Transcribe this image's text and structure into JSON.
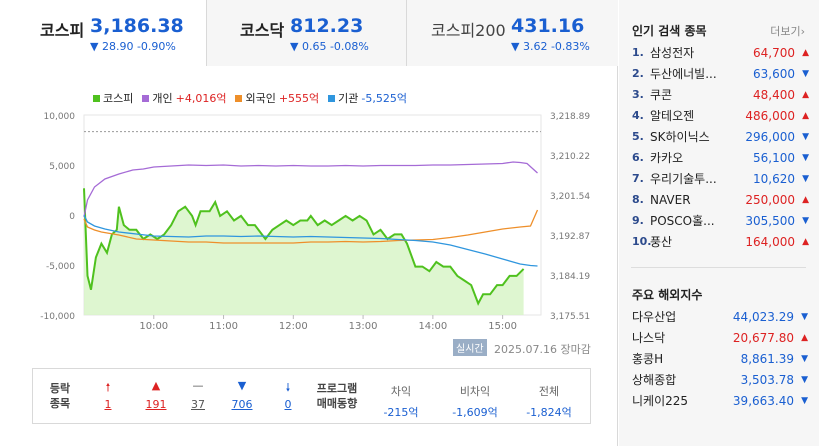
{
  "tabs": [
    {
      "name": "코스피",
      "value": "3,186.38",
      "change": "▼ 28.90 -0.90%"
    },
    {
      "name": "코스닥",
      "value": "812.23",
      "change": "▼ 0.65 -0.08%"
    },
    {
      "name": "코스피200",
      "value": "431.16",
      "change": "▼ 3.62 -0.83%"
    }
  ],
  "legend": [
    {
      "label": "코스피",
      "value": "",
      "color": "#4fc11e"
    },
    {
      "label": "개인",
      "value": "+4,016억",
      "color": "#a56bd6"
    },
    {
      "label": "외국인",
      "value": "+555억",
      "color": "#ee8f2a"
    },
    {
      "label": "기관",
      "value": "-5,525억",
      "color": "#2f96de"
    }
  ],
  "chart_data": {
    "type": "line",
    "left_axis": {
      "ticks": [
        "10,000",
        "5,000",
        "0",
        "-5,000",
        "-10,000"
      ],
      "range": [
        -10000,
        10000
      ]
    },
    "right_axis": {
      "ticks": [
        "3,218.89",
        "3,210.22",
        "3,201.54",
        "3,192.87",
        "3,184.19",
        "3,175.51"
      ],
      "range": [
        3175.51,
        3218.89
      ]
    },
    "x_ticks": [
      "10:00",
      "11:00",
      "12:00",
      "13:00",
      "14:00",
      "15:00"
    ],
    "x_range_hours": [
      9.0,
      15.55
    ],
    "reference_line": 3215.28,
    "series": [
      {
        "name": "코스피",
        "axis": "right",
        "points": [
          [
            9.0,
            3203
          ],
          [
            9.05,
            3184
          ],
          [
            9.1,
            3181
          ],
          [
            9.17,
            3188
          ],
          [
            9.25,
            3191
          ],
          [
            9.33,
            3189
          ],
          [
            9.4,
            3193
          ],
          [
            9.47,
            3194
          ],
          [
            9.5,
            3199
          ],
          [
            9.57,
            3195
          ],
          [
            9.65,
            3194
          ],
          [
            9.75,
            3194
          ],
          [
            9.85,
            3192
          ],
          [
            9.95,
            3193
          ],
          [
            10.05,
            3192
          ],
          [
            10.15,
            3193
          ],
          [
            10.25,
            3195
          ],
          [
            10.35,
            3198
          ],
          [
            10.45,
            3199
          ],
          [
            10.55,
            3197
          ],
          [
            10.6,
            3195
          ],
          [
            10.67,
            3198
          ],
          [
            10.8,
            3198
          ],
          [
            10.88,
            3200
          ],
          [
            10.95,
            3197
          ],
          [
            11.05,
            3198
          ],
          [
            11.15,
            3196
          ],
          [
            11.25,
            3197
          ],
          [
            11.35,
            3195
          ],
          [
            11.45,
            3195
          ],
          [
            11.55,
            3193
          ],
          [
            11.6,
            3192
          ],
          [
            11.7,
            3194
          ],
          [
            11.8,
            3195
          ],
          [
            11.9,
            3196
          ],
          [
            12.0,
            3195
          ],
          [
            12.1,
            3196
          ],
          [
            12.2,
            3196
          ],
          [
            12.25,
            3197
          ],
          [
            12.35,
            3195
          ],
          [
            12.45,
            3196
          ],
          [
            12.55,
            3195
          ],
          [
            12.65,
            3196
          ],
          [
            12.75,
            3197
          ],
          [
            12.85,
            3196
          ],
          [
            12.95,
            3197
          ],
          [
            13.05,
            3196
          ],
          [
            13.15,
            3193
          ],
          [
            13.25,
            3194
          ],
          [
            13.35,
            3192
          ],
          [
            13.45,
            3193
          ],
          [
            13.55,
            3193
          ],
          [
            13.63,
            3191
          ],
          [
            13.75,
            3186
          ],
          [
            13.85,
            3186
          ],
          [
            13.95,
            3185
          ],
          [
            14.05,
            3187
          ],
          [
            14.15,
            3186
          ],
          [
            14.25,
            3186
          ],
          [
            14.35,
            3184
          ],
          [
            14.45,
            3183
          ],
          [
            14.55,
            3182
          ],
          [
            14.65,
            3178
          ],
          [
            14.72,
            3180
          ],
          [
            14.82,
            3180
          ],
          [
            14.92,
            3182
          ],
          [
            15.0,
            3182
          ],
          [
            15.1,
            3184
          ],
          [
            15.2,
            3184
          ],
          [
            15.3,
            3185.5
          ]
        ]
      },
      {
        "name": "개인",
        "axis": "left",
        "points": [
          [
            9.0,
            -200
          ],
          [
            9.05,
            1500
          ],
          [
            9.15,
            2800
          ],
          [
            9.3,
            3600
          ],
          [
            9.5,
            4100
          ],
          [
            9.7,
            4500
          ],
          [
            9.85,
            4600
          ],
          [
            10.0,
            4800
          ],
          [
            10.25,
            4900
          ],
          [
            10.5,
            5000
          ],
          [
            10.75,
            4950
          ],
          [
            11.0,
            5000
          ],
          [
            11.25,
            4900
          ],
          [
            11.5,
            4950
          ],
          [
            11.75,
            4900
          ],
          [
            12.0,
            4950
          ],
          [
            12.25,
            4900
          ],
          [
            12.5,
            4900
          ],
          [
            12.75,
            4950
          ],
          [
            13.0,
            4900
          ],
          [
            13.25,
            4950
          ],
          [
            13.5,
            4950
          ],
          [
            13.75,
            4950
          ],
          [
            14.0,
            5000
          ],
          [
            14.25,
            5000
          ],
          [
            14.5,
            5050
          ],
          [
            14.75,
            5100
          ],
          [
            15.0,
            5150
          ],
          [
            15.15,
            5300
          ],
          [
            15.25,
            5250
          ],
          [
            15.35,
            5150
          ],
          [
            15.5,
            4200
          ]
        ]
      },
      {
        "name": "외국인",
        "axis": "left",
        "points": [
          [
            9.0,
            -400
          ],
          [
            9.05,
            -1200
          ],
          [
            9.15,
            -1500
          ],
          [
            9.25,
            -1700
          ],
          [
            9.5,
            -2000
          ],
          [
            9.75,
            -2400
          ],
          [
            10.0,
            -2500
          ],
          [
            10.25,
            -2600
          ],
          [
            10.5,
            -2700
          ],
          [
            10.75,
            -2700
          ],
          [
            11.0,
            -2800
          ],
          [
            11.25,
            -2800
          ],
          [
            11.5,
            -2800
          ],
          [
            11.75,
            -2800
          ],
          [
            12.0,
            -2800
          ],
          [
            12.25,
            -2700
          ],
          [
            12.5,
            -2700
          ],
          [
            12.75,
            -2650
          ],
          [
            13.0,
            -2700
          ],
          [
            13.25,
            -2650
          ],
          [
            13.5,
            -2550
          ],
          [
            13.75,
            -2500
          ],
          [
            14.0,
            -2450
          ],
          [
            14.25,
            -2250
          ],
          [
            14.5,
            -2000
          ],
          [
            14.75,
            -1700
          ],
          [
            15.0,
            -1400
          ],
          [
            15.25,
            -1200
          ],
          [
            15.4,
            -1100
          ],
          [
            15.5,
            500
          ]
        ]
      },
      {
        "name": "기관",
        "axis": "left",
        "points": [
          [
            9.0,
            0
          ],
          [
            9.05,
            -700
          ],
          [
            9.15,
            -1100
          ],
          [
            9.3,
            -1400
          ],
          [
            9.5,
            -1700
          ],
          [
            9.75,
            -1900
          ],
          [
            10.0,
            -2100
          ],
          [
            10.25,
            -2150
          ],
          [
            10.5,
            -2200
          ],
          [
            10.75,
            -2100
          ],
          [
            11.0,
            -2100
          ],
          [
            11.25,
            -2150
          ],
          [
            11.5,
            -2100
          ],
          [
            11.75,
            -2150
          ],
          [
            12.0,
            -2200
          ],
          [
            12.25,
            -2150
          ],
          [
            12.5,
            -2200
          ],
          [
            12.75,
            -2250
          ],
          [
            13.0,
            -2300
          ],
          [
            13.25,
            -2350
          ],
          [
            13.5,
            -2450
          ],
          [
            13.75,
            -2550
          ],
          [
            14.0,
            -2700
          ],
          [
            14.25,
            -3000
          ],
          [
            14.5,
            -3450
          ],
          [
            14.75,
            -3900
          ],
          [
            15.0,
            -4400
          ],
          [
            15.25,
            -4900
          ],
          [
            15.4,
            -5050
          ],
          [
            15.5,
            -5100
          ]
        ]
      }
    ]
  },
  "status": {
    "live": "실시간",
    "date": "2025.07.16 장마감"
  },
  "stats": {
    "label": "등락\n종목",
    "items": [
      {
        "icon": "🠕",
        "value": "1",
        "color": "#d22"
      },
      {
        "icon": "▲",
        "value": "191",
        "color": "#d22"
      },
      {
        "icon": "—",
        "value": "37",
        "color": "#555"
      },
      {
        "icon": "▼",
        "value": "706",
        "color": "#1a5fd1"
      },
      {
        "icon": "🠗",
        "value": "0",
        "color": "#1a5fd1"
      }
    ],
    "program_label": "프로그램\n매매동향",
    "program": [
      {
        "label": "차익",
        "value": "-215억"
      },
      {
        "label": "비차익",
        "value": "-1,609억"
      },
      {
        "label": "전체",
        "value": "-1,824억"
      }
    ]
  },
  "popular": {
    "title": "인기 검색 종목",
    "more": "더보기",
    "items": [
      {
        "no": "1.",
        "name": "삼성전자",
        "price": "64,700",
        "dir": "up"
      },
      {
        "no": "2.",
        "name": "두산에너빌...",
        "price": "63,600",
        "dir": "down"
      },
      {
        "no": "3.",
        "name": "쿠콘",
        "price": "48,400",
        "dir": "up"
      },
      {
        "no": "4.",
        "name": "알테오젠",
        "price": "486,000",
        "dir": "up"
      },
      {
        "no": "5.",
        "name": "SK하이닉스",
        "price": "296,000",
        "dir": "down"
      },
      {
        "no": "6.",
        "name": "카카오",
        "price": "56,100",
        "dir": "down"
      },
      {
        "no": "7.",
        "name": "우리기술투...",
        "price": "10,620",
        "dir": "down"
      },
      {
        "no": "8.",
        "name": "NAVER",
        "price": "250,000",
        "dir": "up"
      },
      {
        "no": "9.",
        "name": "POSCO홀...",
        "price": "305,500",
        "dir": "down"
      },
      {
        "no": "10.",
        "name": "풍산",
        "price": "164,000",
        "dir": "up"
      }
    ]
  },
  "world": {
    "title": "주요 해외지수",
    "items": [
      {
        "name": "다우산업",
        "price": "44,023.29",
        "dir": "down"
      },
      {
        "name": "나스닥",
        "price": "20,677.80",
        "dir": "up"
      },
      {
        "name": "홍콩H",
        "price": "8,861.39",
        "dir": "down"
      },
      {
        "name": "상해종합",
        "price": "3,503.78",
        "dir": "down"
      },
      {
        "name": "니케이225",
        "price": "39,663.40",
        "dir": "down"
      }
    ]
  }
}
